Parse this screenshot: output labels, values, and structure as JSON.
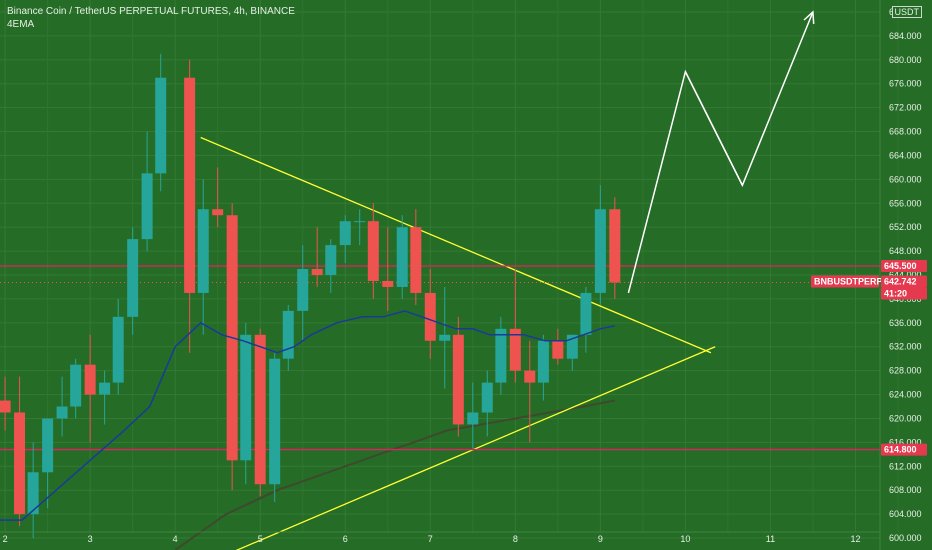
{
  "header": {
    "title": "Binance Coin / TetherUS PERPETUAL FUTURES, 4h, BINANCE",
    "indicator": "4EMA"
  },
  "price_axis": {
    "unit": "USDT",
    "ticks": [
      "600.000",
      "604.000",
      "608.000",
      "612.000",
      "616.000",
      "620.000",
      "624.000",
      "628.000",
      "632.000",
      "636.000",
      "640.000",
      "644.000",
      "648.000",
      "652.000",
      "656.000",
      "660.000",
      "664.000",
      "668.000",
      "672.000",
      "676.000",
      "680.000",
      "684.000",
      "688.000"
    ]
  },
  "time_axis": {
    "ticks": [
      "2",
      "3",
      "4",
      "5",
      "6",
      "7",
      "8",
      "9",
      "10",
      "11",
      "12"
    ]
  },
  "price_labels": {
    "resistance": "645.500",
    "support": "614.800",
    "symbol": "BNBUSDTPERP",
    "last_price": "642.742",
    "countdown": "41:20"
  },
  "colors": {
    "background": "#256c26",
    "candle_up": "#26a69a",
    "candle_down": "#ef5350",
    "ema_fast": "#1a3a9a",
    "ema_slow": "#3e4a2e",
    "trendline": "#ffff33",
    "level_line": "#e91e63",
    "projection": "#ffffff",
    "label_bg": "#e53950"
  },
  "chart_data": {
    "type": "candlestick",
    "title": "Binance Coin / TetherUS PERPETUAL FUTURES, 4h, BINANCE",
    "x_axis": "time (days)",
    "ylim": [
      598,
      690
    ],
    "xlim": [
      1.94,
      12.9
    ],
    "candles": [
      {
        "t": 2.0,
        "o": 623,
        "h": 627,
        "l": 618,
        "c": 621
      },
      {
        "t": 2.17,
        "o": 621,
        "h": 627,
        "l": 602,
        "c": 604
      },
      {
        "t": 2.33,
        "o": 604,
        "h": 616,
        "l": 600,
        "c": 611
      },
      {
        "t": 2.5,
        "o": 611,
        "h": 620,
        "l": 605,
        "c": 620
      },
      {
        "t": 2.67,
        "o": 620,
        "h": 627,
        "l": 617,
        "c": 622
      },
      {
        "t": 2.83,
        "o": 622,
        "h": 630,
        "l": 620,
        "c": 629
      },
      {
        "t": 3.0,
        "o": 629,
        "h": 634,
        "l": 616,
        "c": 624
      },
      {
        "t": 3.17,
        "o": 624,
        "h": 628,
        "l": 619,
        "c": 626
      },
      {
        "t": 3.33,
        "o": 626,
        "h": 640,
        "l": 624,
        "c": 637
      },
      {
        "t": 3.5,
        "o": 637,
        "h": 652,
        "l": 634,
        "c": 650
      },
      {
        "t": 3.67,
        "o": 650,
        "h": 668,
        "l": 648,
        "c": 661
      },
      {
        "t": 3.83,
        "o": 661,
        "h": 681,
        "l": 658,
        "c": 677
      },
      {
        "t": 4.17,
        "o": 677,
        "h": 680,
        "l": 631,
        "c": 641
      },
      {
        "t": 4.33,
        "o": 641,
        "h": 660,
        "l": 634,
        "c": 655
      },
      {
        "t": 4.5,
        "o": 655,
        "h": 662,
        "l": 652,
        "c": 654
      },
      {
        "t": 4.67,
        "o": 654,
        "h": 656,
        "l": 608,
        "c": 613
      },
      {
        "t": 4.83,
        "o": 613,
        "h": 636,
        "l": 609,
        "c": 634
      },
      {
        "t": 5.0,
        "o": 634,
        "h": 635,
        "l": 607,
        "c": 609
      },
      {
        "t": 5.17,
        "o": 609,
        "h": 631,
        "l": 606,
        "c": 630
      },
      {
        "t": 5.33,
        "o": 630,
        "h": 639,
        "l": 628,
        "c": 638
      },
      {
        "t": 5.5,
        "o": 638,
        "h": 649,
        "l": 633,
        "c": 645
      },
      {
        "t": 5.67,
        "o": 645,
        "h": 652,
        "l": 642,
        "c": 644
      },
      {
        "t": 5.83,
        "o": 644,
        "h": 650,
        "l": 641,
        "c": 649
      },
      {
        "t": 6.0,
        "o": 649,
        "h": 654,
        "l": 646,
        "c": 653
      },
      {
        "t": 6.17,
        "o": 653,
        "h": 655,
        "l": 649,
        "c": 653
      },
      {
        "t": 6.33,
        "o": 653,
        "h": 656,
        "l": 640,
        "c": 643
      },
      {
        "t": 6.5,
        "o": 643,
        "h": 652,
        "l": 638,
        "c": 642
      },
      {
        "t": 6.67,
        "o": 642,
        "h": 654,
        "l": 640,
        "c": 652
      },
      {
        "t": 6.83,
        "o": 652,
        "h": 655,
        "l": 639,
        "c": 641
      },
      {
        "t": 7.0,
        "o": 641,
        "h": 645,
        "l": 630,
        "c": 633
      },
      {
        "t": 7.17,
        "o": 633,
        "h": 642,
        "l": 625,
        "c": 634
      },
      {
        "t": 7.33,
        "o": 634,
        "h": 637,
        "l": 617,
        "c": 619
      },
      {
        "t": 7.5,
        "o": 619,
        "h": 626,
        "l": 615,
        "c": 621
      },
      {
        "t": 7.67,
        "o": 621,
        "h": 628,
        "l": 617,
        "c": 626
      },
      {
        "t": 7.83,
        "o": 626,
        "h": 637,
        "l": 624,
        "c": 635
      },
      {
        "t": 8.0,
        "o": 635,
        "h": 645,
        "l": 626,
        "c": 628
      },
      {
        "t": 8.17,
        "o": 628,
        "h": 633,
        "l": 616,
        "c": 626
      },
      {
        "t": 8.33,
        "o": 626,
        "h": 634,
        "l": 623,
        "c": 633
      },
      {
        "t": 8.5,
        "o": 633,
        "h": 635,
        "l": 629,
        "c": 630
      },
      {
        "t": 8.67,
        "o": 630,
        "h": 634,
        "l": 628,
        "c": 634
      },
      {
        "t": 8.83,
        "o": 634,
        "h": 642,
        "l": 631,
        "c": 641
      },
      {
        "t": 9.0,
        "o": 641,
        "h": 659,
        "l": 639,
        "c": 655
      },
      {
        "t": 9.17,
        "o": 655,
        "h": 657,
        "l": 640,
        "c": 642.742
      }
    ],
    "ema_fast": [
      [
        1.94,
        603
      ],
      [
        2.2,
        603
      ],
      [
        2.6,
        608
      ],
      [
        3.0,
        613
      ],
      [
        3.4,
        618
      ],
      [
        3.7,
        622
      ],
      [
        4.0,
        632
      ],
      [
        4.3,
        636
      ],
      [
        4.55,
        634
      ],
      [
        4.8,
        633
      ],
      [
        5.0,
        632
      ],
      [
        5.2,
        631
      ],
      [
        5.4,
        632
      ],
      [
        5.6,
        634
      ],
      [
        5.9,
        636
      ],
      [
        6.2,
        637
      ],
      [
        6.45,
        637
      ],
      [
        6.7,
        638
      ],
      [
        6.9,
        637
      ],
      [
        7.1,
        636
      ],
      [
        7.3,
        635
      ],
      [
        7.5,
        635
      ],
      [
        7.7,
        634
      ],
      [
        7.9,
        634
      ],
      [
        8.1,
        634
      ],
      [
        8.35,
        633
      ],
      [
        8.6,
        633
      ],
      [
        8.8,
        634
      ],
      [
        9.0,
        635
      ],
      [
        9.17,
        635.5
      ]
    ],
    "ema_slow": [
      [
        4.0,
        598
      ],
      [
        4.3,
        601
      ],
      [
        4.6,
        604
      ],
      [
        4.9,
        606
      ],
      [
        5.2,
        608
      ],
      [
        5.6,
        610
      ],
      [
        6.0,
        612
      ],
      [
        6.4,
        614
      ],
      [
        6.8,
        616
      ],
      [
        7.2,
        618
      ],
      [
        7.6,
        619
      ],
      [
        8.0,
        620
      ],
      [
        8.4,
        621
      ],
      [
        8.8,
        622
      ],
      [
        9.17,
        623
      ]
    ],
    "trendlines": [
      {
        "from": [
          4.3,
          667
        ],
        "to": [
          10.3,
          631
        ]
      },
      {
        "from": [
          4.4,
          596
        ],
        "to": [
          10.35,
          632
        ]
      }
    ],
    "levels": [
      645.5,
      614.8
    ],
    "projection": [
      [
        9.33,
        641
      ],
      [
        10.0,
        678
      ],
      [
        10.67,
        659
      ],
      [
        11.5,
        688
      ]
    ],
    "last_price": 642.742
  }
}
